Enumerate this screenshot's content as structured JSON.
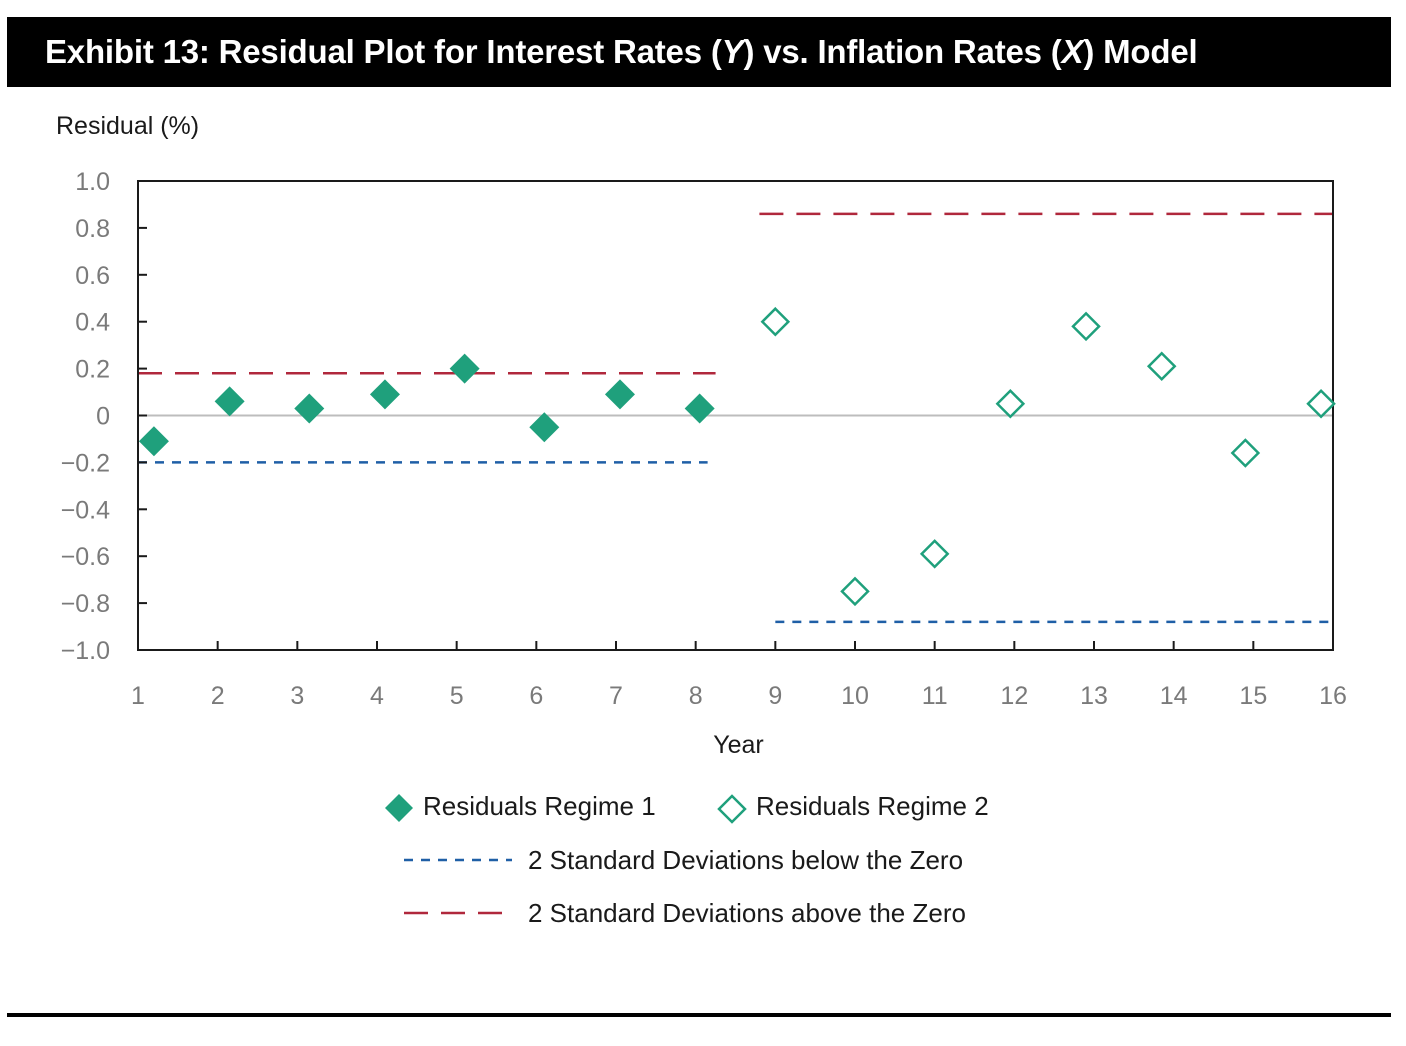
{
  "title": {
    "prefix": "Exhibit 13: Residual Plot for Interest Rates (",
    "y_var": "Y",
    "middle": ") vs. Inflation Rates (",
    "x_var": "X",
    "suffix": ") Model"
  },
  "chart_data": {
    "type": "scatter",
    "ylabel": "Residual (%)",
    "xlabel": "Year",
    "xlim": [
      1,
      16
    ],
    "ylim": [
      -1.0,
      1.0
    ],
    "x_ticks": [
      "1",
      "2",
      "3",
      "4",
      "5",
      "6",
      "7",
      "8",
      "9",
      "10",
      "11",
      "12",
      "13",
      "14",
      "15",
      "16"
    ],
    "y_ticks": [
      {
        "value": 1.0,
        "label": "1.0"
      },
      {
        "value": 0.8,
        "label": "0.8"
      },
      {
        "value": 0.6,
        "label": "0.6"
      },
      {
        "value": 0.4,
        "label": "0.4"
      },
      {
        "value": 0.2,
        "label": "0.2"
      },
      {
        "value": 0.0,
        "label": "0"
      },
      {
        "value": -0.2,
        "label": "−0.2"
      },
      {
        "value": -0.4,
        "label": "−0.4"
      },
      {
        "value": -0.6,
        "label": "−0.6"
      },
      {
        "value": -0.8,
        "label": "−0.8"
      },
      {
        "value": -1.0,
        "label": "−1.0"
      }
    ],
    "zero_line": true,
    "series": [
      {
        "name": "Residuals Regime 1",
        "marker": "filled-diamond",
        "color": "#1fa07c",
        "points": [
          {
            "x": 1.2,
            "y": -0.11
          },
          {
            "x": 2.15,
            "y": 0.06
          },
          {
            "x": 3.15,
            "y": 0.03
          },
          {
            "x": 4.1,
            "y": 0.09
          },
          {
            "x": 5.1,
            "y": 0.2
          },
          {
            "x": 6.1,
            "y": -0.05
          },
          {
            "x": 7.05,
            "y": 0.09
          },
          {
            "x": 8.05,
            "y": 0.03
          }
        ]
      },
      {
        "name": "Residuals Regime 2",
        "marker": "hollow-diamond",
        "color": "#1fa07c",
        "points": [
          {
            "x": 9.0,
            "y": 0.4
          },
          {
            "x": 10.0,
            "y": -0.75
          },
          {
            "x": 11.0,
            "y": -0.59
          },
          {
            "x": 11.95,
            "y": 0.05
          },
          {
            "x": 12.9,
            "y": 0.38
          },
          {
            "x": 13.85,
            "y": 0.21
          },
          {
            "x": 14.9,
            "y": -0.16
          },
          {
            "x": 15.85,
            "y": 0.05
          }
        ]
      }
    ],
    "reference_lines": [
      {
        "name": "2 Standard Deviations below the Zero",
        "style": "short-dash",
        "color": "#1f5fa6",
        "segments": [
          {
            "x0": 1,
            "x1": 8.15,
            "y": -0.2
          },
          {
            "x0": 9.0,
            "x1": 16,
            "y": -0.88
          }
        ]
      },
      {
        "name": "2 Standard Deviations above the Zero",
        "style": "long-dash",
        "color": "#b0283c",
        "segments": [
          {
            "x0": 1,
            "x1": 8.25,
            "y": 0.18
          },
          {
            "x0": 8.8,
            "x1": 16,
            "y": 0.86
          }
        ]
      }
    ],
    "legend": [
      {
        "label": "Residuals Regime 1",
        "symbol": "filled-diamond"
      },
      {
        "label": "Residuals Regime 2",
        "symbol": "hollow-diamond"
      },
      {
        "label": "2 Standard Deviations below the Zero",
        "symbol": "short-dash"
      },
      {
        "label": "2 Standard Deviations above the Zero",
        "symbol": "long-dash"
      }
    ],
    "legend_position": "bottom-center",
    "grid": false
  }
}
